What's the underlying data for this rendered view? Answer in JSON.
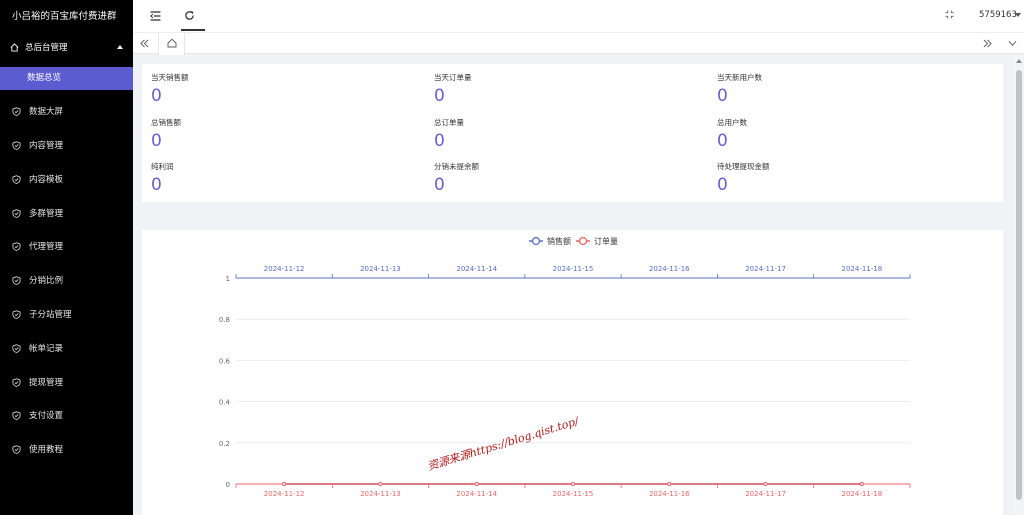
{
  "sidebar": {
    "brand": "小吕裕的百宝库付费进群",
    "group": {
      "label": "总后台管理",
      "icon": "home-icon"
    },
    "active_item": "数据总览",
    "items": [
      {
        "label": "数据大屏",
        "icon": "shield-check-icon"
      },
      {
        "label": "内容管理",
        "icon": "shield-check-icon"
      },
      {
        "label": "内容模板",
        "icon": "shield-check-icon"
      },
      {
        "label": "多群管理",
        "icon": "shield-check-icon"
      },
      {
        "label": "代理管理",
        "icon": "shield-check-icon"
      },
      {
        "label": "分销比例",
        "icon": "shield-check-icon"
      },
      {
        "label": "子分站管理",
        "icon": "shield-check-icon"
      },
      {
        "label": "帐单记录",
        "icon": "shield-check-icon"
      },
      {
        "label": "提现管理",
        "icon": "shield-check-icon"
      },
      {
        "label": "支付设置",
        "icon": "shield-check-icon"
      },
      {
        "label": "使用教程",
        "icon": "shield-check-icon"
      }
    ]
  },
  "header": {
    "user": "5759163",
    "icons": [
      "collapse-menu-icon",
      "refresh-icon",
      "fullscreen-icon",
      "home-tab-icon"
    ]
  },
  "stats": [
    {
      "label": "当天销售额",
      "value": "0"
    },
    {
      "label": "当天订单量",
      "value": "0"
    },
    {
      "label": "当天新用户数",
      "value": "0"
    },
    {
      "label": "总销售额",
      "value": "0"
    },
    {
      "label": "总订单量",
      "value": "0"
    },
    {
      "label": "总用户数",
      "value": "0"
    },
    {
      "label": "纯利润",
      "value": "0"
    },
    {
      "label": "分销未提余额",
      "value": "0"
    },
    {
      "label": "待处理提现金额",
      "value": "0"
    }
  ],
  "chart_data": {
    "type": "line",
    "x": [
      "2024-11-12",
      "2024-11-13",
      "2024-11-14",
      "2024-11-15",
      "2024-11-16",
      "2024-11-17",
      "2024-11-18"
    ],
    "y_ticks": [
      "1",
      "0.8",
      "0.6",
      "0.4",
      "0.2",
      "0"
    ],
    "ylim": [
      0,
      1
    ],
    "series": [
      {
        "name": "销售额",
        "values": [
          0,
          0,
          0,
          0,
          0,
          0,
          0
        ],
        "color": "#5470c6"
      },
      {
        "name": "订单量",
        "values": [
          0,
          0,
          0,
          0,
          0,
          0,
          0
        ],
        "color": "#ee6666"
      }
    ],
    "legend": "top-center",
    "x_axis_positions": [
      "top",
      "bottom"
    ]
  },
  "watermark": "资源来源https://blog.qist.top/"
}
